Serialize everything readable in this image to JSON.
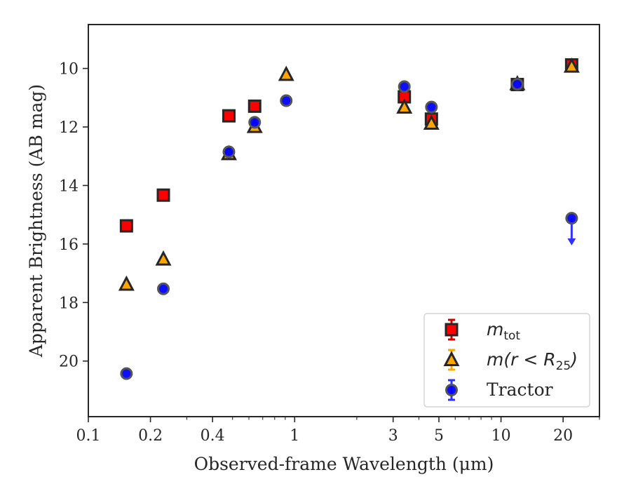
{
  "chart_data": {
    "type": "scatter",
    "xlabel": "Observed-frame Wavelength (μm)",
    "ylabel": "Apparent Brightness (AB mag)",
    "xscale": "log",
    "xlim": [
      0.1,
      30
    ],
    "ylim": [
      21.9,
      8.5
    ],
    "y_inverted": true,
    "x_ticks": [
      0.1,
      0.2,
      0.4,
      1,
      3,
      5,
      10,
      20
    ],
    "x_tick_labels": [
      "0.1",
      "0.2",
      "0.4",
      "1",
      "3",
      "5",
      "10",
      "20"
    ],
    "y_ticks": [
      10,
      12,
      14,
      16,
      18,
      20
    ],
    "y_tick_labels": [
      "10",
      "12",
      "14",
      "16",
      "18",
      "20"
    ],
    "grid": false,
    "legend_position": "lower-right",
    "series": [
      {
        "name": "m_tot",
        "legend_main": "m",
        "legend_sub": "tot",
        "marker": "square",
        "color": "#ff0000",
        "edge_color": "#262626",
        "errorbar_color": "#d40000",
        "x": [
          0.153,
          0.231,
          0.48,
          0.64,
          3.4,
          4.6,
          12,
          22
        ],
        "y": [
          15.38,
          14.33,
          11.62,
          11.29,
          10.97,
          11.73,
          10.55,
          9.88
        ]
      },
      {
        "name": "m(r < R25)",
        "legend_main": "m(r < R",
        "legend_sub": "25",
        "legend_tail": ")",
        "marker": "triangle",
        "color": "#ffa500",
        "edge_color": "#262626",
        "errorbar_color": "#ffa500",
        "x": [
          0.153,
          0.231,
          0.48,
          0.64,
          0.91,
          3.4,
          4.6,
          12,
          22
        ],
        "y": [
          17.38,
          16.52,
          12.92,
          11.99,
          10.21,
          11.33,
          11.88,
          10.53,
          9.93
        ]
      },
      {
        "name": "Tractor",
        "marker": "circle",
        "color": "#0000ff",
        "edge_color": "#555555",
        "errorbar_color": "#3030ff",
        "x": [
          0.153,
          0.231,
          0.48,
          0.64,
          0.91,
          3.4,
          4.6,
          12,
          22
        ],
        "y": [
          20.43,
          17.53,
          12.85,
          11.84,
          11.1,
          10.62,
          11.32,
          10.54,
          15.12
        ],
        "upper_limit_index": 8,
        "upper_limit_to": 16.0
      }
    ]
  }
}
